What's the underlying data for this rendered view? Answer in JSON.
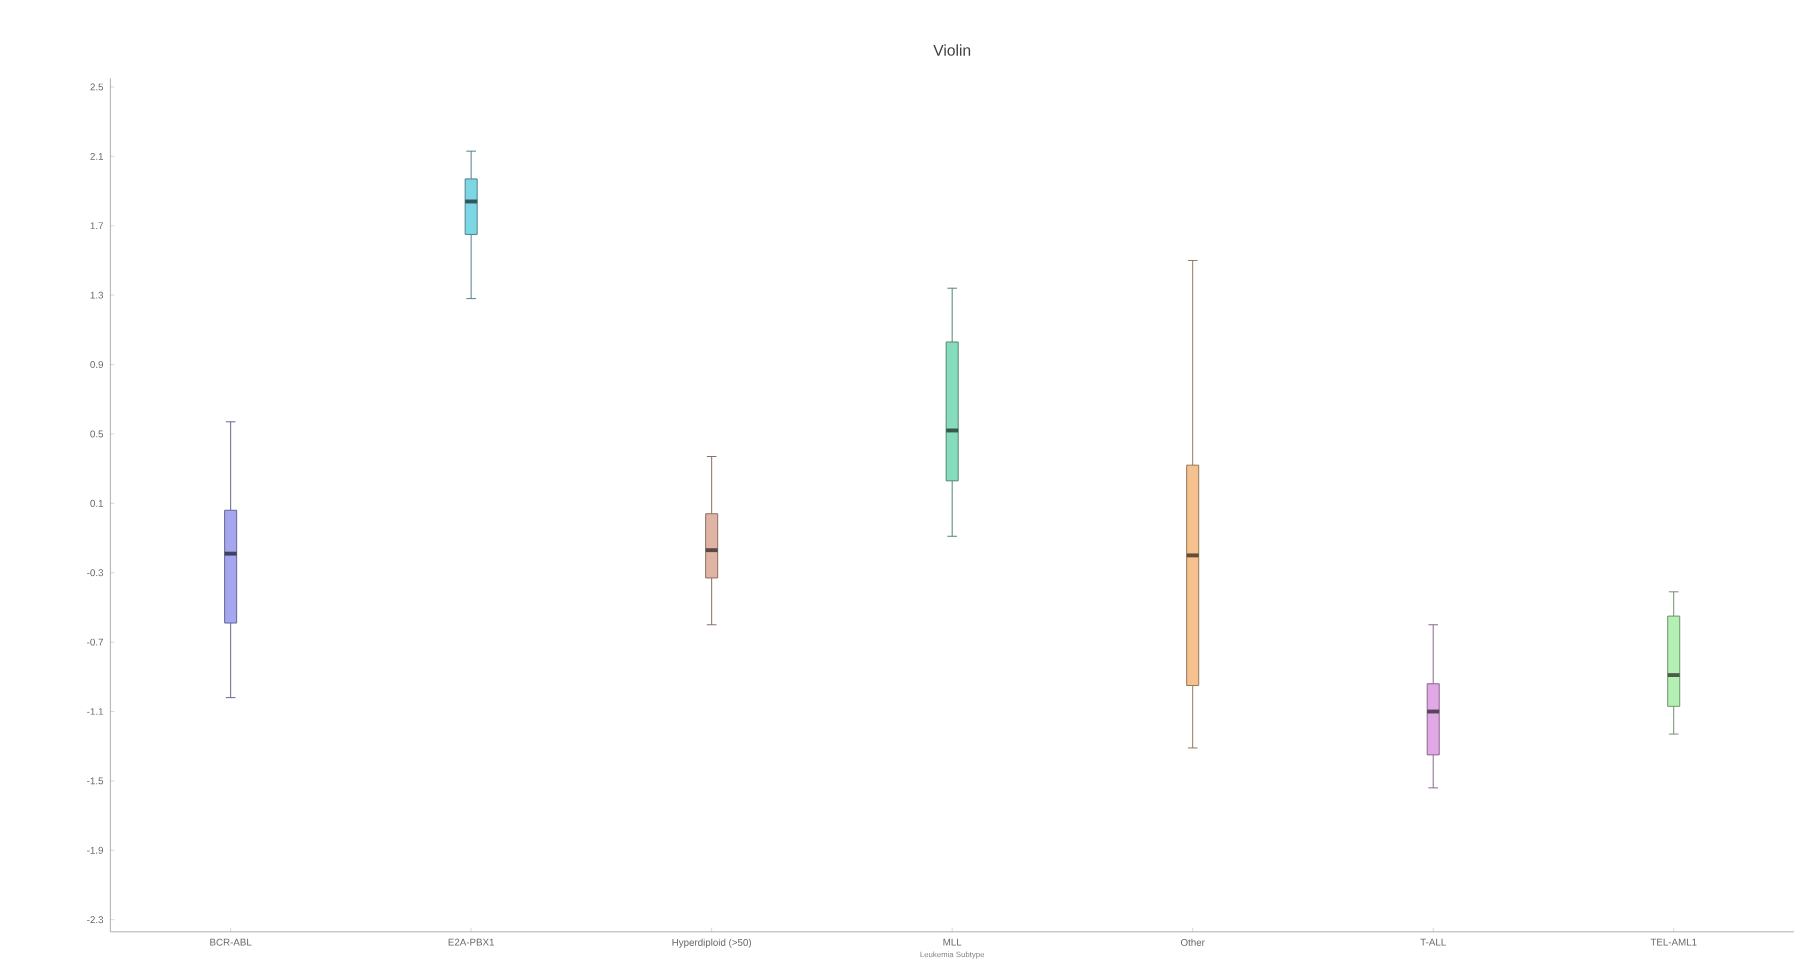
{
  "chart_data": {
    "type": "box",
    "title": "Violin",
    "xlabel": "Leukemia Subtype",
    "categories": [
      "BCR-ABL",
      "E2A-PBX1",
      "Hyperdiploid (>50)",
      "MLL",
      "Other",
      "T-ALL",
      "TEL-AML1"
    ],
    "colors": [
      "#a5a5f0",
      "#7dd6e4",
      "#e0b4a4",
      "#86dcbc",
      "#f5c18e",
      "#e0a8e4",
      "#b4f0b4"
    ],
    "boxes": [
      {
        "low": -1.02,
        "q1": -0.59,
        "median": -0.19,
        "q3": 0.06,
        "high": 0.57
      },
      {
        "low": 1.28,
        "q1": 1.65,
        "median": 1.84,
        "q3": 1.97,
        "high": 2.13
      },
      {
        "low": -0.6,
        "q1": -0.33,
        "median": -0.17,
        "q3": 0.04,
        "high": 0.37
      },
      {
        "low": -0.09,
        "q1": 0.23,
        "median": 0.52,
        "q3": 1.03,
        "high": 1.34
      },
      {
        "low": -1.31,
        "q1": -0.95,
        "median": -0.2,
        "q3": 0.32,
        "high": 1.5
      },
      {
        "low": -1.54,
        "q1": -1.35,
        "median": -1.1,
        "q3": -0.94,
        "high": -0.6
      },
      {
        "low": -1.23,
        "q1": -1.07,
        "median": -0.89,
        "q3": -0.55,
        "high": -0.41
      }
    ],
    "ylim": [
      -2.37,
      2.55
    ],
    "yticks": [
      2.5,
      2.1,
      1.7,
      1.3,
      0.9,
      0.5,
      0.1,
      -0.3,
      -0.7,
      -1.1,
      -1.5,
      -1.9,
      -2.3
    ]
  }
}
